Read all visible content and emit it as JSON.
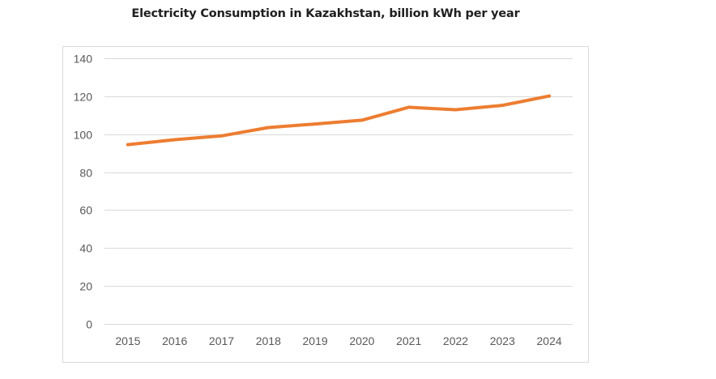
{
  "chart_data": {
    "type": "line",
    "title": "Electricity Consumption in Kazakhstan, billion kWh per year",
    "xlabel": "",
    "ylabel": "",
    "categories": [
      "2015",
      "2016",
      "2017",
      "2018",
      "2019",
      "2020",
      "2021",
      "2022",
      "2023",
      "2024"
    ],
    "series": [
      {
        "name": "Electricity Consumption",
        "values": [
          94.5,
          97.1,
          99.1,
          103.5,
          105.4,
          107.4,
          114.2,
          112.9,
          115.2,
          120.1
        ],
        "color": "#ED7D31"
      }
    ],
    "ylim": [
      0,
      140
    ],
    "yticks": [
      0,
      20,
      40,
      60,
      80,
      100,
      120,
      140
    ],
    "grid": true,
    "legend": "none"
  },
  "colors": {
    "gridline": "#d9d9d9",
    "border": "#d9d9d9",
    "tick_text": "#595959"
  }
}
